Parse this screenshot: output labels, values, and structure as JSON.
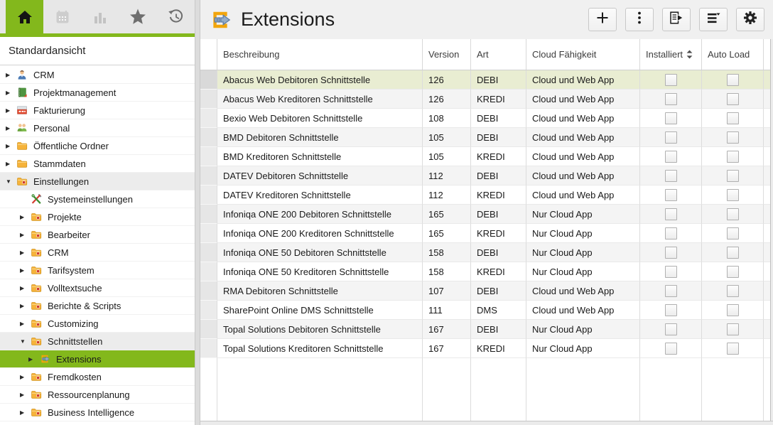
{
  "colors": {
    "accent_green": "#83b81c",
    "selected_row_bg": "#e9edd2",
    "main_header_bg": "#f0f0f0",
    "tabstrip_bg": "#e7e7e7"
  },
  "tabs": [
    {
      "icon": "home-icon",
      "active": true
    },
    {
      "icon": "calendar-icon",
      "active": false
    },
    {
      "icon": "bar-chart-icon",
      "active": false
    },
    {
      "icon": "star-icon",
      "active": false
    },
    {
      "icon": "history-icon",
      "active": false
    }
  ],
  "sidebar": {
    "title": "Standardansicht",
    "items": [
      {
        "label": "CRM",
        "icon": "crm-person-icon",
        "level": 0,
        "expander": "collapsed"
      },
      {
        "label": "Projektmanagement",
        "icon": "notebook-icon",
        "level": 0,
        "expander": "collapsed"
      },
      {
        "label": "Fakturierung",
        "icon": "invoice-icon",
        "level": 0,
        "expander": "collapsed"
      },
      {
        "label": "Personal",
        "icon": "people-icon",
        "level": 0,
        "expander": "collapsed"
      },
      {
        "label": "Öffentliche Ordner",
        "icon": "folder-icon",
        "level": 0,
        "expander": "collapsed"
      },
      {
        "label": "Stammdaten",
        "icon": "folder-icon",
        "level": 0,
        "expander": "collapsed"
      },
      {
        "label": "Einstellungen",
        "icon": "folder-settings-icon",
        "level": 0,
        "expander": "expanded",
        "highlighted": true
      },
      {
        "label": "Systemeinstellungen",
        "icon": "tools-icon",
        "level": 1,
        "expander": "none"
      },
      {
        "label": "Projekte",
        "icon": "folder-settings-icon",
        "level": 1,
        "expander": "collapsed"
      },
      {
        "label": "Bearbeiter",
        "icon": "folder-settings-icon",
        "level": 1,
        "expander": "collapsed"
      },
      {
        "label": "CRM",
        "icon": "folder-settings-icon",
        "level": 1,
        "expander": "collapsed"
      },
      {
        "label": "Tarifsystem",
        "icon": "folder-settings-icon",
        "level": 1,
        "expander": "collapsed"
      },
      {
        "label": "Volltextsuche",
        "icon": "folder-settings-icon",
        "level": 1,
        "expander": "collapsed"
      },
      {
        "label": "Berichte & Scripts",
        "icon": "folder-settings-icon",
        "level": 1,
        "expander": "collapsed"
      },
      {
        "label": "Customizing",
        "icon": "folder-settings-icon",
        "level": 1,
        "expander": "collapsed"
      },
      {
        "label": "Schnittstellen",
        "icon": "folder-settings-icon",
        "level": 1,
        "expander": "expanded",
        "highlighted": true
      },
      {
        "label": "Extensions",
        "icon": "extensions-icon",
        "level": 2,
        "expander": "collapsed",
        "selected": true
      },
      {
        "label": "Fremdkosten",
        "icon": "folder-settings-icon",
        "level": 1,
        "expander": "collapsed"
      },
      {
        "label": "Ressourcenplanung",
        "icon": "folder-settings-icon",
        "level": 1,
        "expander": "collapsed"
      },
      {
        "label": "Business Intelligence",
        "icon": "folder-settings-icon",
        "level": 1,
        "expander": "collapsed"
      }
    ]
  },
  "header": {
    "icon": "extensions-icon",
    "title": "Extensions",
    "buttons": [
      {
        "name": "add",
        "icon": "plus-icon"
      },
      {
        "name": "more",
        "icon": "kebab-menu-icon"
      },
      {
        "name": "report",
        "icon": "document-forward-icon"
      },
      {
        "name": "view-menu",
        "icon": "menu-caret-icon"
      },
      {
        "name": "settings",
        "icon": "gear-icon"
      }
    ]
  },
  "table": {
    "columns": [
      {
        "key": "selector",
        "label": ""
      },
      {
        "key": "beschreibung",
        "label": "Beschreibung"
      },
      {
        "key": "version",
        "label": "Version"
      },
      {
        "key": "art",
        "label": "Art"
      },
      {
        "key": "cloud",
        "label": "Cloud Fähigkeit"
      },
      {
        "key": "installiert",
        "label": "Installiert",
        "sortable": true
      },
      {
        "key": "autoload",
        "label": "Auto Load"
      }
    ],
    "rows": [
      {
        "beschreibung": "Abacus Web Debitoren Schnittstelle",
        "version": "126",
        "art": "DEBI",
        "cloud": "Cloud und Web App",
        "installiert": false,
        "autoload": false,
        "selected": true
      },
      {
        "beschreibung": "Abacus Web Kreditoren Schnittstelle",
        "version": "126",
        "art": "KREDI",
        "cloud": "Cloud und Web App",
        "installiert": false,
        "autoload": false
      },
      {
        "beschreibung": "Bexio Web Debitoren Schnittstelle",
        "version": "108",
        "art": "DEBI",
        "cloud": "Cloud und Web App",
        "installiert": false,
        "autoload": false
      },
      {
        "beschreibung": "BMD Debitoren Schnittstelle",
        "version": "105",
        "art": "DEBI",
        "cloud": "Cloud und Web App",
        "installiert": false,
        "autoload": false
      },
      {
        "beschreibung": "BMD Kreditoren Schnittstelle",
        "version": "105",
        "art": "KREDI",
        "cloud": "Cloud und Web App",
        "installiert": false,
        "autoload": false
      },
      {
        "beschreibung": "DATEV Debitoren Schnittstelle",
        "version": "112",
        "art": "DEBI",
        "cloud": "Cloud und Web App",
        "installiert": false,
        "autoload": false
      },
      {
        "beschreibung": "DATEV Kreditoren Schnittstelle",
        "version": "112",
        "art": "KREDI",
        "cloud": "Cloud und Web App",
        "installiert": false,
        "autoload": false
      },
      {
        "beschreibung": "Infoniqa ONE 200 Debitoren Schnittstelle",
        "version": "165",
        "art": "DEBI",
        "cloud": "Nur Cloud App",
        "installiert": false,
        "autoload": false
      },
      {
        "beschreibung": "Infoniqa ONE 200 Kreditoren Schnittstelle",
        "version": "165",
        "art": "KREDI",
        "cloud": "Nur Cloud App",
        "installiert": false,
        "autoload": false
      },
      {
        "beschreibung": "Infoniqa ONE 50 Debitoren Schnittstelle",
        "version": "158",
        "art": "DEBI",
        "cloud": "Nur Cloud App",
        "installiert": false,
        "autoload": false
      },
      {
        "beschreibung": "Infoniqa ONE 50 Kreditoren Schnittstelle",
        "version": "158",
        "art": "KREDI",
        "cloud": "Nur Cloud App",
        "installiert": false,
        "autoload": false
      },
      {
        "beschreibung": "RMA Debitoren Schnittstelle",
        "version": "107",
        "art": "DEBI",
        "cloud": "Cloud und Web App",
        "installiert": false,
        "autoload": false
      },
      {
        "beschreibung": "SharePoint Online DMS Schnittstelle",
        "version": "111",
        "art": "DMS",
        "cloud": "Cloud und Web App",
        "installiert": false,
        "autoload": false
      },
      {
        "beschreibung": "Topal Solutions Debitoren Schnittstelle",
        "version": "167",
        "art": "DEBI",
        "cloud": "Nur Cloud App",
        "installiert": false,
        "autoload": false
      },
      {
        "beschreibung": "Topal Solutions Kreditoren Schnittstelle",
        "version": "167",
        "art": "KREDI",
        "cloud": "Nur Cloud App",
        "installiert": false,
        "autoload": false
      }
    ]
  }
}
